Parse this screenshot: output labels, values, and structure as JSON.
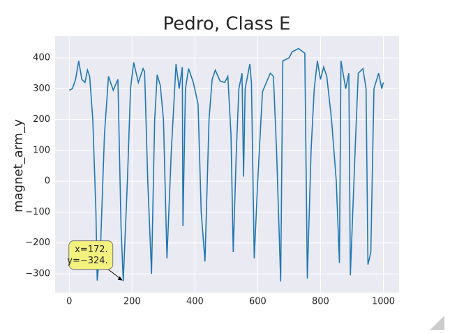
{
  "chart_data": {
    "type": "line",
    "title": "Pedro, Class E",
    "y_label": "magnet_arm_y",
    "x": [
      0,
      10,
      20,
      30,
      40,
      50,
      58,
      65,
      75,
      85,
      89,
      100,
      112,
      125,
      140,
      155,
      165,
      172,
      185,
      195,
      205,
      220,
      235,
      240,
      250,
      262,
      272,
      280,
      290,
      300,
      311,
      325,
      340,
      350,
      360,
      362,
      370,
      380,
      395,
      410,
      420,
      432,
      445,
      455,
      465,
      480,
      495,
      505,
      515,
      522,
      532,
      540,
      550,
      555,
      560,
      575,
      580,
      589,
      600,
      615,
      640,
      650,
      660,
      673,
      677,
      680,
      700,
      710,
      730,
      750,
      758,
      770,
      780,
      790,
      800,
      810,
      820,
      835,
      850,
      860,
      865,
      880,
      890,
      895,
      910,
      920,
      935,
      945,
      951,
      960,
      970,
      985,
      995,
      1000
    ],
    "series": [
      {
        "name": "magnet_arm_y",
        "color": "#1f77b4",
        "values": [
          295,
          300,
          330,
          390,
          330,
          320,
          360,
          340,
          200,
          -100,
          -322,
          -200,
          150,
          340,
          295,
          330,
          -150,
          -324,
          0,
          300,
          385,
          320,
          365,
          355,
          0,
          -300,
          200,
          345,
          310,
          200,
          -250,
          100,
          380,
          300,
          370,
          -145,
          300,
          365,
          320,
          250,
          -100,
          -260,
          200,
          330,
          360,
          325,
          320,
          340,
          150,
          -230,
          100,
          300,
          350,
          15,
          300,
          380,
          320,
          -250,
          0,
          290,
          350,
          340,
          100,
          -325,
          100,
          390,
          400,
          420,
          430,
          415,
          -315,
          100,
          300,
          390,
          330,
          370,
          340,
          200,
          0,
          -265,
          390,
          300,
          350,
          -305,
          100,
          350,
          365,
          300,
          -270,
          -230,
          300,
          350,
          300,
          320
        ]
      }
    ],
    "xlim": [
      -45,
      1050
    ],
    "ylim": [
      -361,
      470
    ],
    "xticks": [
      0,
      200,
      400,
      600,
      800,
      1000
    ],
    "yticks": [
      400,
      300,
      200,
      100,
      0,
      {
        "value": -100,
        "label": "−100"
      },
      {
        "value": -200,
        "label": "−200"
      },
      {
        "value": -300,
        "label": "−300"
      }
    ],
    "grid": true,
    "annotation": {
      "lines": [
        "x=172.",
        "y=−324."
      ],
      "x": 172,
      "y": -324
    }
  }
}
